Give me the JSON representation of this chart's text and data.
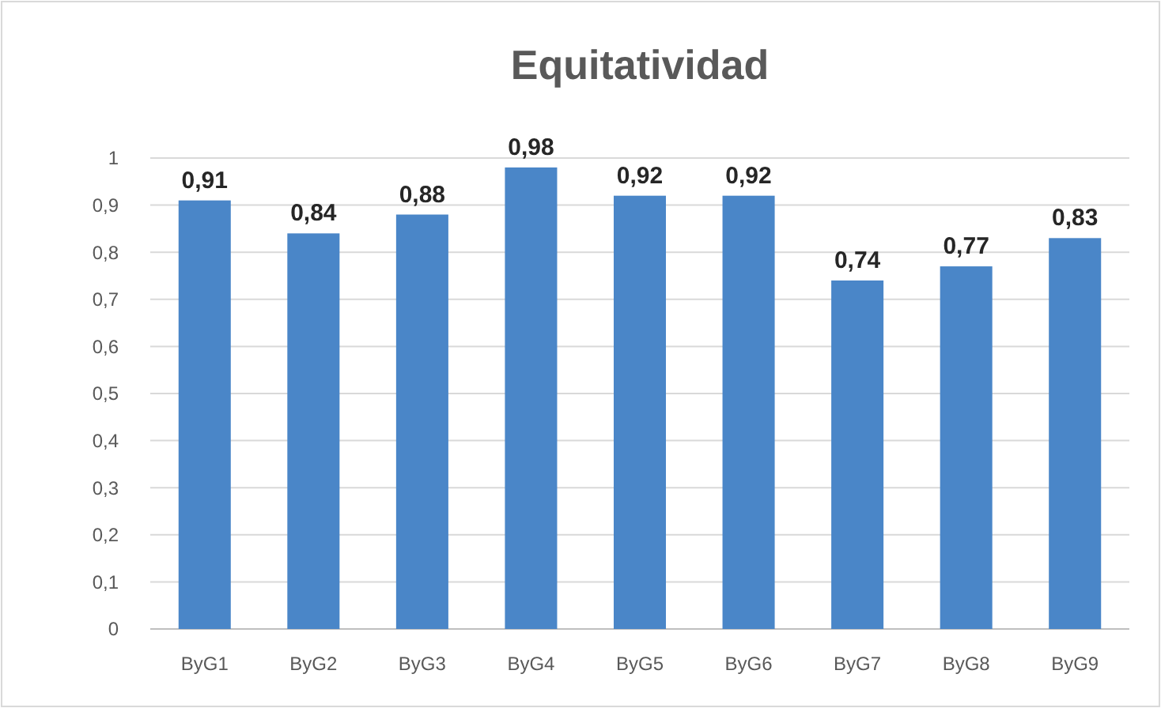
{
  "chart_data": {
    "type": "bar",
    "title": "Equitatividad",
    "categories": [
      "ByG1",
      "ByG2",
      "ByG3",
      "ByG4",
      "ByG5",
      "ByG6",
      "ByG7",
      "ByG8",
      "ByG9"
    ],
    "values": [
      0.91,
      0.84,
      0.88,
      0.98,
      0.92,
      0.92,
      0.74,
      0.77,
      0.83
    ],
    "value_labels": [
      "0,91",
      "0,84",
      "0,88",
      "0,98",
      "0,92",
      "0,92",
      "0,74",
      "0,77",
      "0,83"
    ],
    "color": "#4a86c8",
    "ylim": [
      0,
      1
    ],
    "yticks": [
      0,
      {
        "value": 0.1,
        "label": "0,1"
      },
      {
        "value": 0.2,
        "label": "0,2"
      },
      {
        "value": 0.3,
        "label": "0,3"
      },
      {
        "value": 0.4,
        "label": "0,4"
      },
      {
        "value": 0.5,
        "label": "0,5"
      },
      {
        "value": 0.6,
        "label": "0,6"
      },
      {
        "value": 0.7,
        "label": "0,7"
      },
      {
        "value": 0.8,
        "label": "0,8"
      },
      {
        "value": 0.9,
        "label": "0,9"
      },
      1
    ],
    "grid": "y"
  }
}
